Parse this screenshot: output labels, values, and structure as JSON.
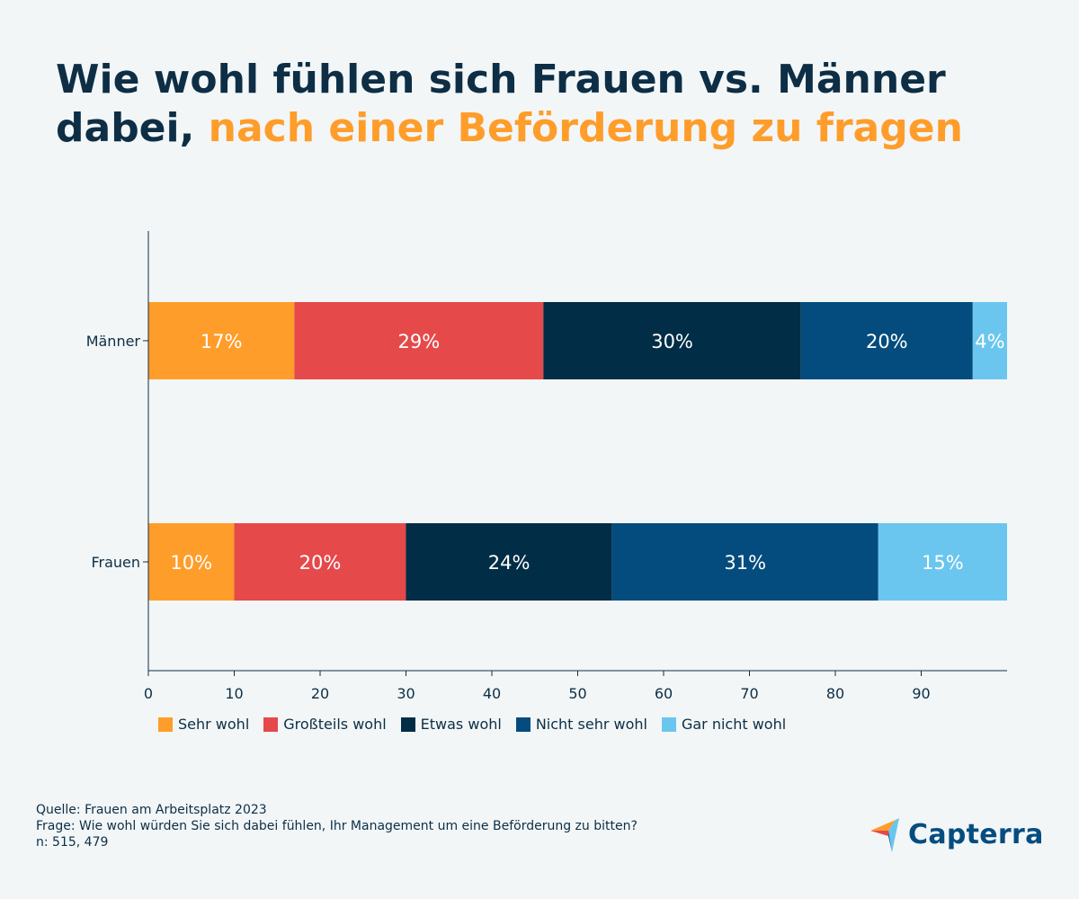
{
  "title": {
    "part1": "Wie wohl fühlen sich Frauen vs. Männer",
    "part2": "dabei,",
    "accent": "nach einer Beförderung zu fragen"
  },
  "colors": {
    "title": "#0d2e45",
    "accent": "#ff9d2a",
    "background": "#f2f6f7"
  },
  "chart_data": {
    "type": "bar",
    "orientation": "horizontal",
    "stacked": true,
    "categories": [
      "Männer",
      "Frauen"
    ],
    "series": [
      {
        "name": "Sehr wohl",
        "color": "#ff9d2a",
        "values": [
          17,
          10
        ],
        "labels": [
          "17%",
          "10%"
        ]
      },
      {
        "name": "Großteils wohl",
        "color": "#e5494a",
        "values": [
          29,
          20
        ],
        "labels": [
          "29%",
          "20%"
        ]
      },
      {
        "name": "Etwas wohl",
        "color": "#012d46",
        "values": [
          30,
          24
        ],
        "labels": [
          "30%",
          "24%"
        ]
      },
      {
        "name": "Nicht sehr wohl",
        "color": "#044c7d",
        "values": [
          20,
          31
        ],
        "labels": [
          "20%",
          "31%"
        ]
      },
      {
        "name": "Gar nicht wohl",
        "color": "#6ac6ee",
        "values": [
          4,
          15
        ],
        "labels": [
          "4%",
          "15%"
        ]
      }
    ],
    "xlim": [
      0,
      100
    ],
    "xticks": [
      0,
      10,
      20,
      30,
      40,
      50,
      60,
      70,
      80,
      90
    ],
    "grid": false,
    "legend": "bottom"
  },
  "footer": {
    "source": "Quelle: Frauen am Arbeitsplatz 2023",
    "question": "Frage: Wie wohl würden Sie sich dabei fühlen, Ihr Management um eine Beförderung zu bitten?",
    "n": "n: 515, 479"
  },
  "logo": {
    "text": "Capterra",
    "icon": "capterra-arrow-logo"
  }
}
